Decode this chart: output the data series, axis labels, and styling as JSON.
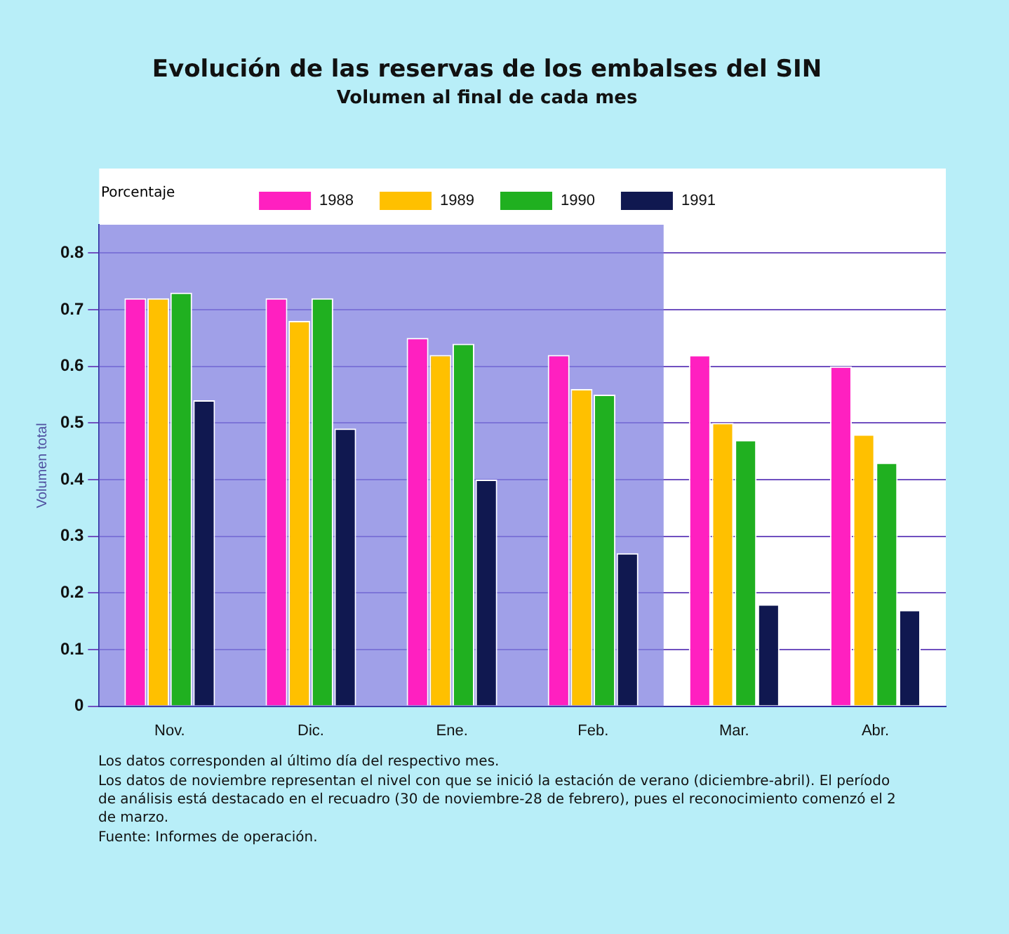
{
  "chart_data": {
    "type": "bar",
    "title": "Evolución de las reservas de los embalses del SIN",
    "subtitle": "Volumen al final de cada mes",
    "ylabel": "Volumen total",
    "categories": [
      "Nov.",
      "Dic.",
      "Ene.",
      "Feb.",
      "Mar.",
      "Abr."
    ],
    "series": [
      {
        "name": "1988",
        "color": "#ff20c0",
        "values": [
          0.72,
          0.72,
          0.65,
          0.62,
          0.62,
          0.6
        ]
      },
      {
        "name": "1989",
        "color": "#ffc000",
        "values": [
          0.72,
          0.68,
          0.62,
          0.56,
          0.5,
          0.48
        ]
      },
      {
        "name": "1990",
        "color": "#20b020",
        "values": [
          0.73,
          0.72,
          0.64,
          0.55,
          0.47,
          0.43
        ]
      },
      {
        "name": "1991",
        "color": "#101850",
        "values": [
          0.54,
          0.49,
          0.4,
          0.27,
          0.18,
          0.17
        ]
      }
    ],
    "ylim": [
      0,
      0.85
    ],
    "yticks": [
      0,
      0.1,
      0.2,
      0.3,
      0.4,
      0.5,
      0.6,
      0.7,
      0.8
    ],
    "bands": [
      {
        "axis": "x",
        "from": "Nov.",
        "to": "Feb.",
        "color": "#8080e0"
      }
    ],
    "grid": "y",
    "legend": "top",
    "annotations": [
      "Porcentaje",
      "Los datos corresponden al último día del respectivo mes.",
      "Los datos de noviembre representan el nivel con que se inició la estación de verano (diciembre-abril). El período de análisis está destacado en el recuadro (30 de noviembre-28 de febrero), pues el reconocimiento comenzó el 2 de marzo.",
      "Fuente: Informes de operación."
    ]
  }
}
